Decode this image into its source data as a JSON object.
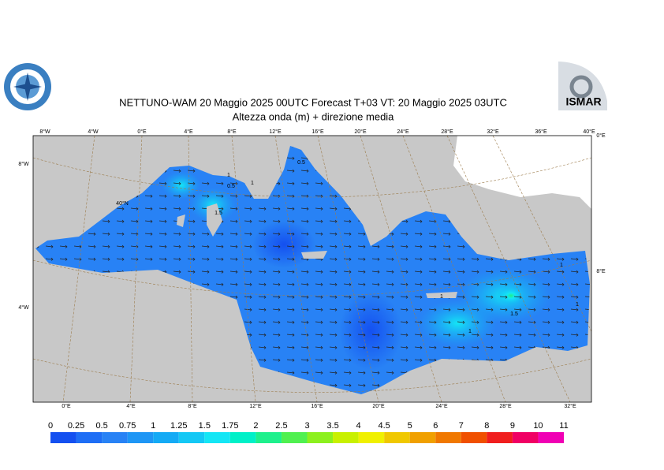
{
  "header": {
    "title": "NETTUNO-WAM  20   Maggio  2025 00UTC Forecast T+03 VT: 20   Maggio  2025 03UTC",
    "subtitle": "Altezza onda (m) + direzione media"
  },
  "logo": {
    "text": "ISMAR"
  },
  "map": {
    "top_lon_labels": [
      "8°W",
      "4°W",
      "0°E",
      "4°E",
      "8°E",
      "12°E",
      "16°E",
      "20°E",
      "24°E",
      "28°E",
      "32°E",
      "36°E",
      "40°E"
    ],
    "bottom_lon_labels": [
      "0°E",
      "4°E",
      "8°E",
      "12°E",
      "16°E",
      "20°E",
      "24°E",
      "28°E",
      "32°E"
    ],
    "left_labels": [
      "8°W",
      "4°W"
    ],
    "right_labels": [
      "0°E",
      "8°E"
    ],
    "inner_labels": [
      "40°N"
    ],
    "contour_labels": [
      "0.5",
      "1",
      "0.5",
      "1",
      "1.5",
      "1",
      "1",
      "1.5",
      "1",
      "1"
    ]
  },
  "colorbar": {
    "labels": [
      0,
      0.25,
      0.5,
      0.75,
      1,
      1.25,
      1.5,
      1.75,
      2,
      2.5,
      3,
      3.5,
      4,
      4.5,
      5,
      6,
      7,
      8,
      9,
      10,
      11
    ],
    "colors": [
      "#1450f0",
      "#1e6ef5",
      "#2882f5",
      "#1e96f5",
      "#14aaf5",
      "#14c8f5",
      "#14e6f5",
      "#00f0c8",
      "#1ef08c",
      "#50f050",
      "#8cf01e",
      "#c8f000",
      "#f0f000",
      "#f0c800",
      "#f0a000",
      "#f07800",
      "#f05000",
      "#f01e1e",
      "#f00064",
      "#f000b4"
    ]
  }
}
